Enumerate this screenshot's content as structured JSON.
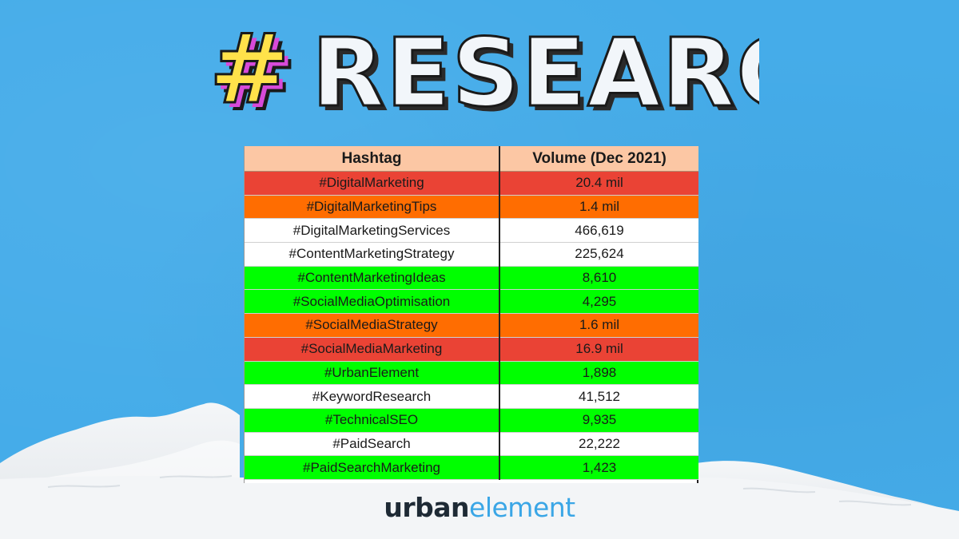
{
  "title": {
    "text": "#RESEARCH",
    "hash_symbol": "#",
    "word": "RESEARCH"
  },
  "table": {
    "headers": {
      "hashtag": "Hashtag",
      "volume": "Volume (Dec 2021)"
    },
    "rows": [
      {
        "hashtag": "#DigitalMarketing",
        "volume": "20.4 mil",
        "color": "red"
      },
      {
        "hashtag": "#DigitalMarketingTips",
        "volume": "1.4 mil",
        "color": "orange"
      },
      {
        "hashtag": "#DigitalMarketingServices",
        "volume": "466,619",
        "color": "white"
      },
      {
        "hashtag": "#ContentMarketingStrategy",
        "volume": "225,624",
        "color": "white"
      },
      {
        "hashtag": "#ContentMarketingIdeas",
        "volume": "8,610",
        "color": "green"
      },
      {
        "hashtag": "#SocialMediaOptimisation",
        "volume": "4,295",
        "color": "green"
      },
      {
        "hashtag": "#SocialMediaStrategy",
        "volume": "1.6 mil",
        "color": "orange"
      },
      {
        "hashtag": "#SocialMediaMarketing",
        "volume": "16.9 mil",
        "color": "red"
      },
      {
        "hashtag": "#UrbanElement",
        "volume": "1,898",
        "color": "green"
      },
      {
        "hashtag": "#KeywordResearch",
        "volume": "41,512",
        "color": "white"
      },
      {
        "hashtag": "#TechnicalSEO",
        "volume": "9,935",
        "color": "green"
      },
      {
        "hashtag": "#PaidSearch",
        "volume": "22,222",
        "color": "white"
      },
      {
        "hashtag": "#PaidSearchMarketing",
        "volume": "1,423",
        "color": "green"
      }
    ]
  },
  "logo": {
    "part1": "urban",
    "part2": "element"
  },
  "colors": {
    "background": "#45ace9",
    "header": "#fcc7a4",
    "red": "#ea4335",
    "orange": "#ff6d01",
    "green": "#00ff00",
    "white": "#ffffff",
    "hash_fill": "#ffe24a",
    "hash_side": "#d74ad9",
    "logo_dark": "#1e2a35",
    "logo_accent": "#3aa6e6"
  }
}
